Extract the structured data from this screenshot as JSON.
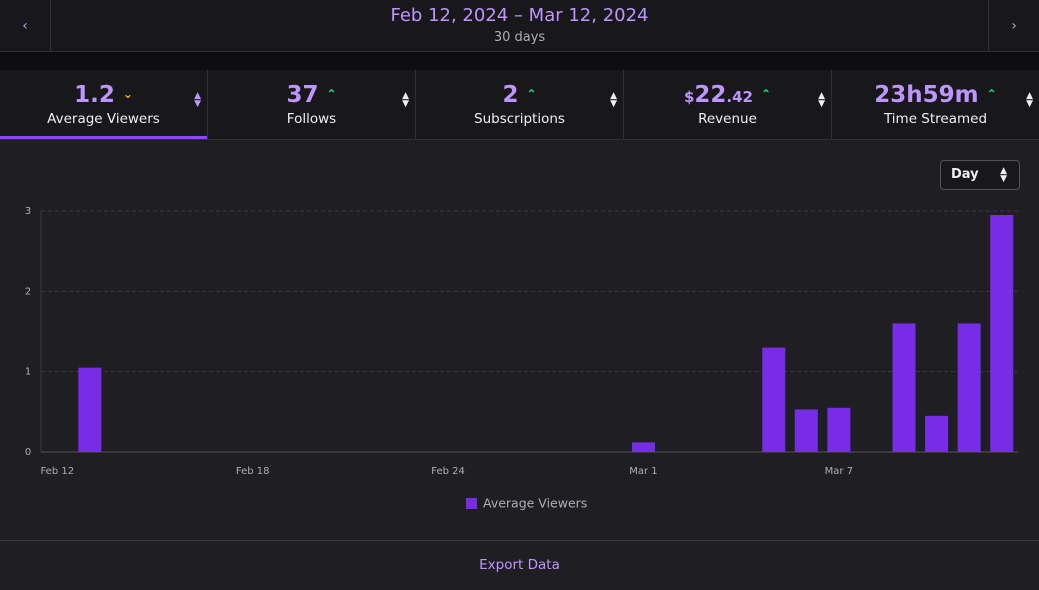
{
  "header": {
    "date_range": "Feb 12, 2024 – Mar 12, 2024",
    "duration": "30 days"
  },
  "stats": [
    {
      "value": "1.2",
      "label": "Average Viewers"
    },
    {
      "value": "37",
      "label": "Follows"
    },
    {
      "value": "2",
      "label": "Subscriptions"
    },
    {
      "value": {
        "currency": "$",
        "amount": "22",
        "cents": ".42"
      },
      "label": "Revenue"
    },
    {
      "value": "23h59m",
      "label": "Time Streamed"
    }
  ],
  "interval": "Day",
  "chart_data": {
    "type": "bar",
    "categories": [
      "Feb 12",
      null,
      null,
      null,
      null,
      null,
      "Feb 18",
      null,
      null,
      null,
      null,
      null,
      "Feb 24",
      null,
      null,
      null,
      null,
      null,
      "Mar 1",
      null,
      null,
      null,
      null,
      null,
      "Mar 7",
      null,
      null,
      null,
      null,
      null
    ],
    "series": [
      {
        "name": "Average Viewers",
        "color": "#772ce8",
        "values": [
          0,
          1.05,
          0,
          0,
          0,
          0,
          0,
          0,
          0,
          0,
          0,
          0,
          0,
          0,
          0,
          0,
          0,
          0,
          0.12,
          0,
          0,
          0,
          1.3,
          0.53,
          0.55,
          0,
          1.6,
          0.45,
          1.6,
          2.95
        ]
      }
    ],
    "ylim": [
      0,
      3
    ],
    "yticks": [
      0,
      1,
      2,
      3
    ],
    "grid": true
  },
  "export": "Export Data"
}
